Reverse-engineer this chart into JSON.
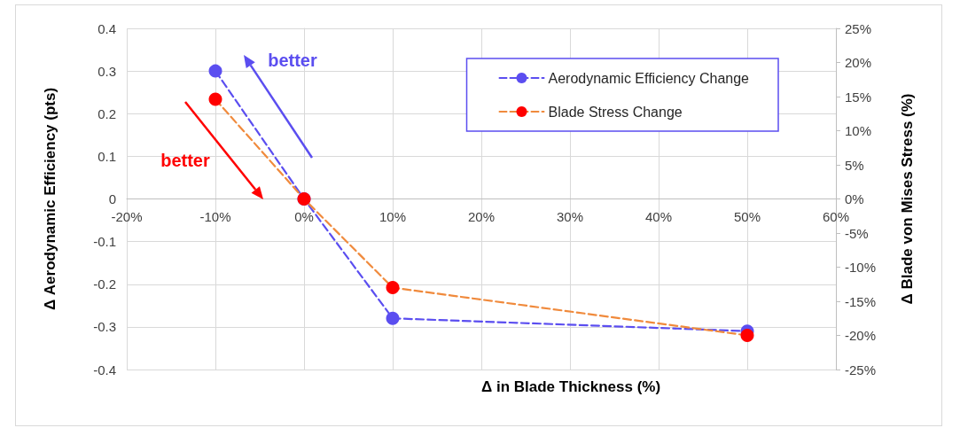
{
  "chart_data": {
    "type": "line",
    "xlabel": "Δ in Blade Thickness (%)",
    "ylabel": "Δ Aerodynamic Efficiency (pts)",
    "y2label": "Δ Blade von Mises Stress (%)",
    "x": [
      -10,
      0,
      10,
      50
    ],
    "series": [
      {
        "name": "Aerodynamic Efficiency Change",
        "color": "#5b4ef0",
        "colors": [
          "#5b4ef0",
          "#5b4ef0",
          "#5b4ef0",
          "#5b4ef0"
        ],
        "values": [
          0.3,
          0,
          -0.28,
          -0.31
        ]
      },
      {
        "name": "Blade Stress Change",
        "color": "#f08a3c",
        "colors": [
          "#ff0000",
          "#ff0000",
          "#ff0000",
          "#ff0000"
        ],
        "values": [
          14.6,
          0,
          -13,
          -20
        ],
        "axis": "y2"
      }
    ],
    "xlim": [
      -20,
      60
    ],
    "xticks": [
      {
        "value": -20,
        "label": "-20%"
      },
      {
        "value": -10,
        "label": "-10%"
      },
      {
        "value": 0,
        "label": "0%"
      },
      {
        "value": 10,
        "label": "10%"
      },
      {
        "value": 20,
        "label": "20%"
      },
      {
        "value": 30,
        "label": "30%"
      },
      {
        "value": 40,
        "label": "40%"
      },
      {
        "value": 50,
        "label": "50%"
      },
      {
        "value": 60,
        "label": "60%"
      }
    ],
    "ylim": [
      -0.4,
      0.4
    ],
    "yticks": [
      -0.4,
      -0.3,
      -0.2,
      -0.1,
      0,
      0.1,
      0.2,
      0.3,
      0.4
    ],
    "y2lim": [
      -25,
      25
    ],
    "y2ticks": [
      {
        "value": -25,
        "label": "-25%"
      },
      {
        "value": -20,
        "label": "-20%"
      },
      {
        "value": -15,
        "label": "-15%"
      },
      {
        "value": -10,
        "label": "-10%"
      },
      {
        "value": -5,
        "label": "-5%"
      },
      {
        "value": 0,
        "label": "0%"
      },
      {
        "value": 5,
        "label": "5%"
      },
      {
        "value": 10,
        "label": "10%"
      },
      {
        "value": 15,
        "label": "15%"
      },
      {
        "value": 20,
        "label": "20%"
      },
      {
        "value": 25,
        "label": "25%"
      }
    ],
    "annotations": [
      "better",
      "better"
    ],
    "grid": true,
    "legend": "top right",
    "marker": "circle",
    "line_style": "dashed"
  }
}
